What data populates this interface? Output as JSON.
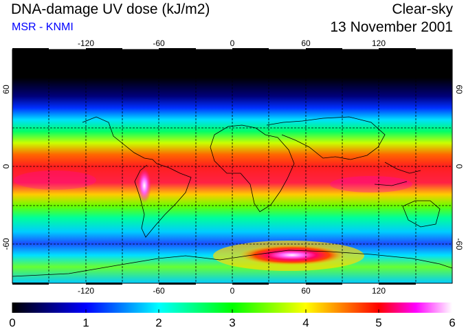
{
  "header": {
    "title": "DNA-damage UV dose (kJ/m2)",
    "subtitle": "MSR - KNMI",
    "mode": "Clear-sky",
    "date": "13 November 2001"
  },
  "map": {
    "lon_ticks": [
      "-120",
      "-60",
      "0",
      "60",
      "120"
    ],
    "lat_ticks": [
      "60",
      "0",
      "-60"
    ],
    "gridlines": true
  },
  "colorbar": {
    "min": 0,
    "max": 6,
    "labels": [
      "0",
      "1",
      "2",
      "3",
      "4",
      "5",
      "6"
    ],
    "colors": [
      "#000000",
      "#0000ff",
      "#00ffff",
      "#00ff00",
      "#ffff00",
      "#ff0000",
      "#ff00ff",
      "#ffffff"
    ]
  },
  "colors": {
    "subtitle": "#0000ff",
    "text": "#000000"
  }
}
